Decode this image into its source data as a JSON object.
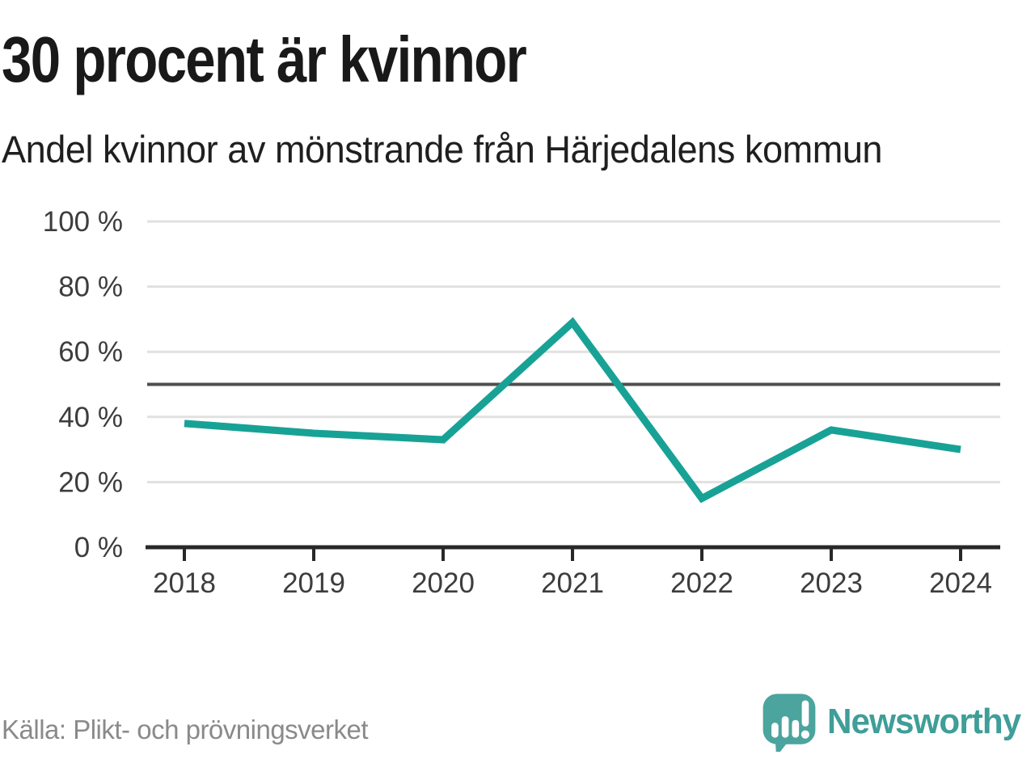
{
  "chart_data": {
    "type": "line",
    "title": "30 procent är kvinnor",
    "subtitle": "Andel kvinnor av mönstrande från Härjedalens kommun",
    "x": [
      "2018",
      "2019",
      "2020",
      "2021",
      "2022",
      "2023",
      "2024"
    ],
    "values": [
      38,
      35,
      33,
      69,
      15,
      36,
      30
    ],
    "series_name": "Andel kvinnor av mönstrande",
    "unit": "%",
    "xlabel": "",
    "ylabel": "",
    "ylim": [
      0,
      100
    ],
    "yticks": [
      0,
      20,
      40,
      60,
      80,
      100
    ],
    "ytick_suffix": " %",
    "reference_line": 50,
    "grid": "horizontal",
    "legend": "none",
    "line_color": "#18a296",
    "gridline_color": "#e1e1e1",
    "reference_line_color": "#4f4f4f",
    "axis_color": "#282828",
    "tick_label_color": "#3d3d3d"
  },
  "footer": {
    "source": "Källa: Plikt- och prövningsverket",
    "brand": "Newsworthy",
    "brand_color": "#3f9e98"
  }
}
